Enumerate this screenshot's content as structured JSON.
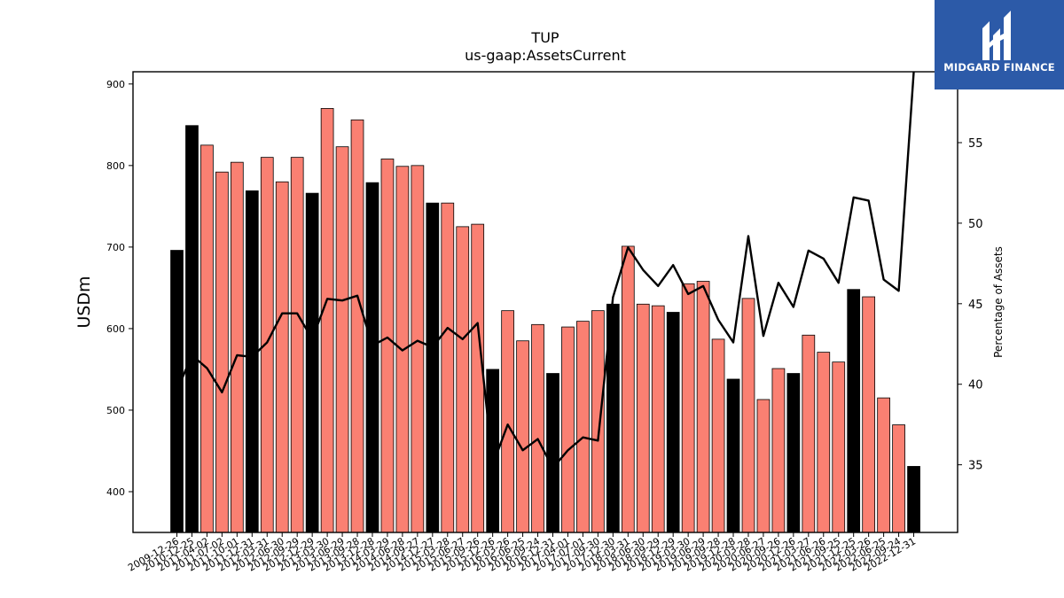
{
  "chart_data": {
    "type": "bar",
    "title": "TUP",
    "subtitle": "us-gaap:AssetsCurrent",
    "ylabel": "USDm",
    "y2label": "Percentage of Assets",
    "ylim": [
      350,
      915
    ],
    "y2lim": [
      30.8,
      59.4
    ],
    "yticks": [
      400,
      500,
      600,
      700,
      800,
      900
    ],
    "y2ticks": [
      35,
      40,
      45,
      50,
      55
    ],
    "categories": [
      "2009-12-26",
      "2010-12-25",
      "2011-04-02",
      "2011-07-02",
      "2011-10-01",
      "2011-12-31",
      "2012-03-31",
      "2012-06-30",
      "2012-09-29",
      "2012-12-29",
      "2013-03-30",
      "2013-06-29",
      "2013-09-28",
      "2013-12-28",
      "2014-03-29",
      "2014-06-28",
      "2014-09-27",
      "2014-12-27",
      "2015-03-28",
      "2015-06-27",
      "2015-09-26",
      "2015-12-26",
      "2016-03-26",
      "2016-06-25",
      "2016-09-24",
      "2016-12-31",
      "2017-04-01",
      "2017-07-01",
      "2017-09-30",
      "2017-12-30",
      "2018-03-31",
      "2018-06-30",
      "2018-09-29",
      "2018-12-29",
      "2019-03-30",
      "2019-06-29",
      "2019-09-28",
      "2019-12-28",
      "2020-03-28",
      "2020-06-27",
      "2020-09-26",
      "2020-12-26",
      "2021-03-27",
      "2021-06-26",
      "2021-09-25",
      "2021-12-25",
      "2022-03-26",
      "2022-06-25",
      "2022-09-24",
      "2022-12-31"
    ],
    "series": [
      {
        "kind": "bar",
        "values": [
          696,
          849,
          825,
          792,
          804,
          769,
          810,
          780,
          810,
          766,
          870,
          823,
          856,
          779,
          808,
          799,
          800,
          754,
          754,
          725,
          728,
          550,
          622,
          585,
          605,
          545,
          602,
          609,
          622,
          630,
          701,
          630,
          628,
          620,
          655,
          658,
          587,
          538,
          637,
          513,
          551,
          545,
          592,
          571,
          559,
          648,
          639,
          515,
          482,
          431
        ],
        "annual": [
          true,
          true,
          false,
          false,
          false,
          true,
          false,
          false,
          false,
          true,
          false,
          false,
          false,
          true,
          false,
          false,
          false,
          true,
          false,
          false,
          false,
          true,
          false,
          false,
          false,
          true,
          false,
          false,
          false,
          true,
          false,
          false,
          false,
          true,
          false,
          false,
          false,
          true,
          false,
          false,
          false,
          true,
          false,
          false,
          false,
          true,
          false,
          false,
          false,
          true
        ],
        "annual_color": "#000000",
        "quarter_color": "#fa8072"
      },
      {
        "kind": "line",
        "axis": "right",
        "color": "#000000",
        "values": [
          39.6,
          41.8,
          41.0,
          39.5,
          41.8,
          41.7,
          42.6,
          44.4,
          44.4,
          42.8,
          45.3,
          45.2,
          45.5,
          42.4,
          42.9,
          42.1,
          42.7,
          42.3,
          43.5,
          42.8,
          43.8,
          35.0,
          37.5,
          35.9,
          36.6,
          34.8,
          35.9,
          36.7,
          36.5,
          45.4,
          48.5,
          47.1,
          46.1,
          47.4,
          45.6,
          46.1,
          44.0,
          42.6,
          49.2,
          43.0,
          46.3,
          44.8,
          48.3,
          47.8,
          46.3,
          51.6,
          51.4,
          46.5,
          45.8,
          59.4
        ]
      }
    ]
  },
  "logo": {
    "text": "MIDGARD FINANCE"
  }
}
